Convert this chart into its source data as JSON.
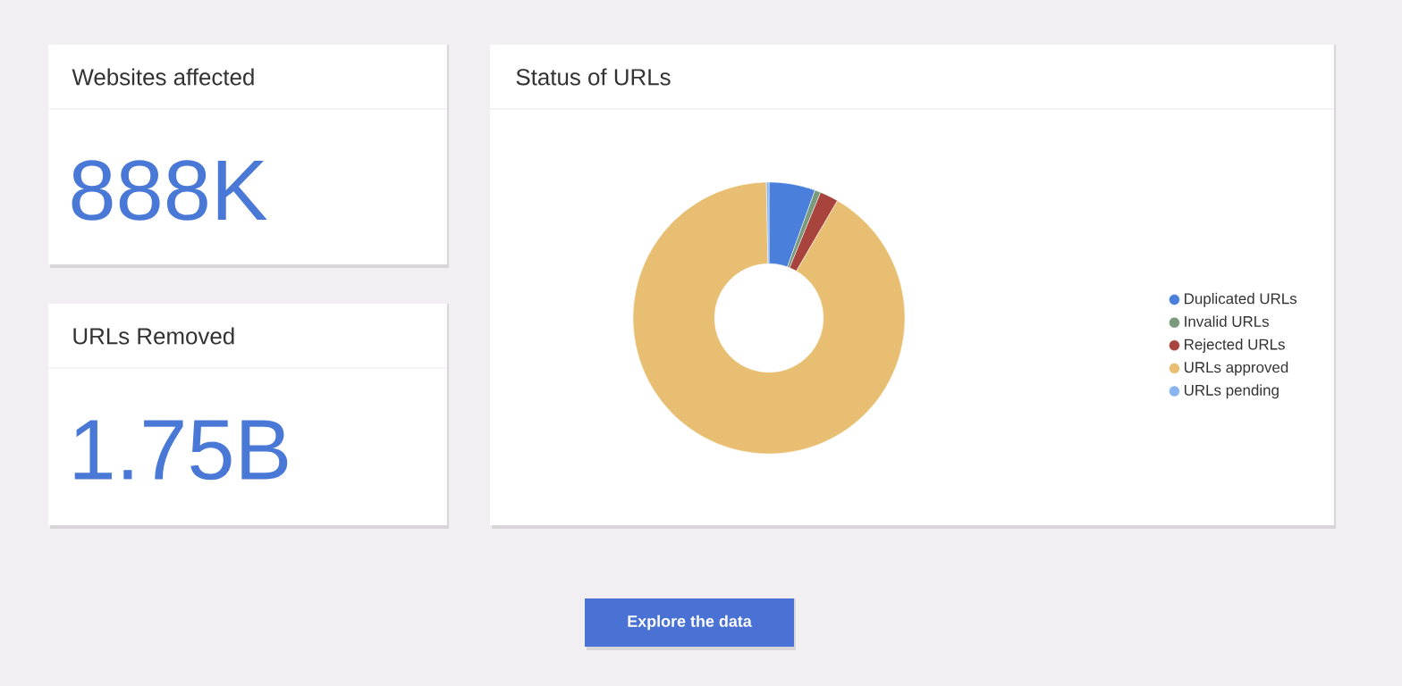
{
  "chart_data": [
    {
      "type": "other",
      "title": "Websites affected",
      "annotations": [
        "888K"
      ]
    },
    {
      "type": "other",
      "title": "URLs Removed",
      "annotations": [
        "1.75B"
      ]
    },
    {
      "type": "donut",
      "title": "Status of URLs",
      "categories": [
        "Duplicated URLs",
        "Invalid URLs",
        "Rejected URLs",
        "URLs approved",
        "URLs pending"
      ],
      "values": [
        5.5,
        0.7,
        2.2,
        91.3,
        0.3
      ],
      "colors": [
        "#4a7fdc",
        "#7a9a7e",
        "#a8433e",
        "#e8bf72",
        "#8ab4f0"
      ],
      "legend": "right"
    },
    {
      "type": "other",
      "annotations": [
        "Explore the data"
      ]
    }
  ]
}
